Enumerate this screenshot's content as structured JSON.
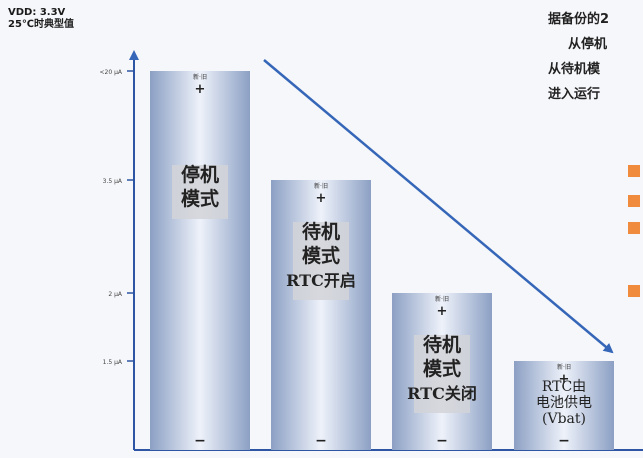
{
  "header": {
    "line1": "VDD: 3.3V",
    "line2": "25℃时典型值"
  },
  "right_text": [
    "据备份的2",
    "从停机",
    "从待机模",
    "进入运行"
  ],
  "bullets": 4,
  "colors": {
    "axis": "#2d55a3",
    "arrow": "#3566b8",
    "bar_dark": "#8ca0c4",
    "bar_light": "#eef2fa",
    "label_box": "#d2d3d8",
    "bullet": "#f08a3c"
  },
  "chart_data": {
    "type": "bar",
    "y_scale": "nonlinear",
    "y_ticks": [
      "<20 μA",
      "3.5 μA",
      "2 μA",
      "1.5 μA"
    ],
    "categories": [
      "停机模式",
      "待机模式 RTC开启",
      "待机模式 RTC关闭",
      "RTC由电池供电(Vbat)"
    ],
    "values_label": [
      "<20 μA",
      "3.5 μA",
      "2 μA",
      "1.5 μA"
    ],
    "values": [
      20,
      3.5,
      2,
      1.5
    ],
    "bars": [
      {
        "lines": [
          "停机",
          "模式"
        ],
        "box_lines": 0,
        "plus": "+",
        "minus": "−",
        "top_label": "新·旧"
      },
      {
        "lines": [
          "待机",
          "模式",
          "RTC开启"
        ],
        "box_lines": 1,
        "plus": "+",
        "minus": "−",
        "top_label": "新·旧"
      },
      {
        "lines": [
          "待机",
          "模式",
          "RTC关闭"
        ],
        "box_lines": 1,
        "plus": "+",
        "minus": "−",
        "top_label": "新·旧"
      },
      {
        "lines": [
          "RTC由",
          "电池供电",
          "(Vbat)"
        ],
        "box_lines": 0,
        "plus": "+",
        "minus": "−",
        "top_label": "新·旧"
      }
    ]
  }
}
